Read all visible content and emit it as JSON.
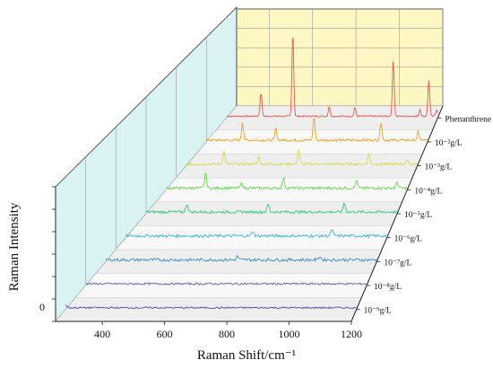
{
  "chart_data": {
    "type": "line",
    "style": "3d-waterfall",
    "xlabel": "Raman Shift/cm⁻¹",
    "ylabel": "Raman Intensity",
    "x_ticks": [
      400,
      600,
      800,
      1000,
      1200
    ],
    "xlim": [
      250,
      1200
    ],
    "y_tick_labels": [
      "0"
    ],
    "grid": true,
    "back_wall_color": "#fdf7c3",
    "side_wall_color": "#d9f3f3",
    "series": [
      {
        "name": "10⁻⁹g/L",
        "color": "#4a4fa8",
        "peaks": [
          {
            "x": 251,
            "y": 3
          }
        ],
        "noise": 1.0
      },
      {
        "name": "10⁻⁸g/L",
        "color": "#5a5cb8",
        "peaks": [],
        "noise": 1.1
      },
      {
        "name": "10⁻⁷g/L",
        "color": "#3d8fc7",
        "peaks": [
          {
            "x": 712,
            "y": 4
          },
          {
            "x": 1000,
            "y": 4
          }
        ],
        "noise": 1.8
      },
      {
        "name": "10⁻⁶g/L",
        "color": "#38b8d6",
        "peaks": [
          {
            "x": 712,
            "y": 6
          },
          {
            "x": 1000,
            "y": 8
          }
        ],
        "noise": 1.6
      },
      {
        "name": "10⁻⁵g/L",
        "color": "#2ec97a",
        "peaks": [
          {
            "x": 405,
            "y": 10
          },
          {
            "x": 712,
            "y": 9
          },
          {
            "x": 1000,
            "y": 11
          }
        ],
        "noise": 1.5
      },
      {
        "name": "10⁻⁴g/L",
        "color": "#62d84a",
        "peaks": [
          {
            "x": 405,
            "y": 18
          },
          {
            "x": 548,
            "y": 6
          },
          {
            "x": 712,
            "y": 12
          },
          {
            "x": 1000,
            "y": 9
          },
          {
            "x": 1160,
            "y": 7
          }
        ],
        "noise": 1.5
      },
      {
        "name": "10⁻³g/L",
        "color": "#d8d84a",
        "peaks": [
          {
            "x": 405,
            "y": 16
          },
          {
            "x": 548,
            "y": 9
          },
          {
            "x": 712,
            "y": 18
          },
          {
            "x": 1000,
            "y": 12
          },
          {
            "x": 1160,
            "y": 6
          }
        ],
        "noise": 1.4
      },
      {
        "name": "10⁻²g/L",
        "color": "#f0a020",
        "peaks": [
          {
            "x": 405,
            "y": 22
          },
          {
            "x": 548,
            "y": 14
          },
          {
            "x": 712,
            "y": 28
          },
          {
            "x": 1000,
            "y": 22
          },
          {
            "x": 1160,
            "y": 10
          }
        ],
        "noise": 1.4
      },
      {
        "name": "Phenanthrene",
        "color": "#e2574c",
        "peaks": [
          {
            "x": 405,
            "y": 28
          },
          {
            "x": 548,
            "y": 100
          },
          {
            "x": 712,
            "y": 12
          },
          {
            "x": 828,
            "y": 10
          },
          {
            "x": 1000,
            "y": 66
          },
          {
            "x": 1120,
            "y": 8
          },
          {
            "x": 1160,
            "y": 42
          },
          {
            "x": 1195,
            "y": 8
          }
        ],
        "noise": 0.8
      }
    ]
  }
}
